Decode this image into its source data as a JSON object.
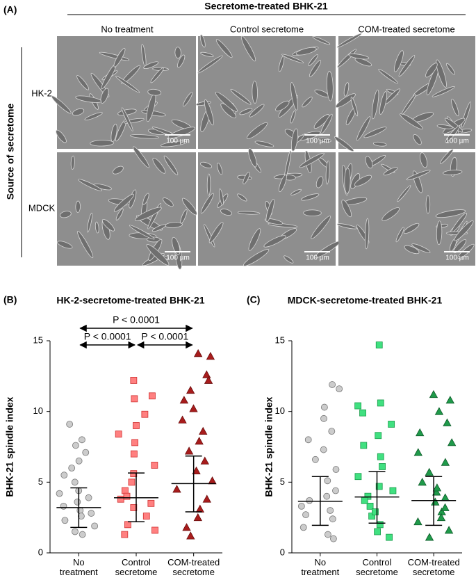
{
  "panel_a": {
    "label": "(A)",
    "title": "Secretome-treated BHK-21",
    "columns": [
      "No treatment",
      "Control secretome",
      "COM-treated secretome"
    ],
    "rows": [
      "HK-2",
      "MDCK"
    ],
    "row_title": "Source of secretome",
    "scale_bar": "100 µm"
  },
  "chart_data": [
    {
      "type": "strip",
      "panel_label": "(B)",
      "title": "HK-2-secretome-treated BHK-21",
      "y_label": "BHK-21 spindle index",
      "categories": [
        "No treatment",
        "Control secretome",
        "COM-treated secretome"
      ],
      "ylim": [
        0,
        15
      ],
      "yticks": [
        0,
        5,
        10,
        15
      ],
      "series": [
        {
          "color": "#cccccc",
          "stroke": "#777777",
          "marker": "circle",
          "mean": 3.2,
          "error_low": 1.8,
          "error_high": 4.6,
          "values": [
            9.1,
            8.0,
            7.6,
            7.1,
            6.5,
            6.0,
            5.5,
            5.0,
            4.4,
            3.9,
            3.3,
            2.8,
            2.3,
            1.9,
            1.5,
            1.3,
            3.0,
            3.6,
            2.6,
            4.2
          ]
        },
        {
          "color": "#ff8080",
          "stroke": "#d03030",
          "marker": "square",
          "mean": 3.9,
          "error_low": 2.2,
          "error_high": 5.65,
          "values": [
            12.2,
            11.1,
            10.9,
            9.8,
            9.0,
            8.4,
            7.8,
            7.0,
            6.2,
            5.6,
            5.0,
            4.4,
            3.8,
            3.2,
            2.6,
            2.0,
            1.6,
            1.3,
            4.0,
            3.5
          ]
        },
        {
          "color": "#a81c1c",
          "stroke": "#6a0e0e",
          "marker": "triangle",
          "mean": 4.9,
          "error_low": 2.9,
          "error_high": 6.85,
          "values": [
            14.1,
            13.9,
            12.6,
            12.2,
            11.5,
            10.8,
            10.2,
            9.4,
            8.6,
            7.9,
            7.2,
            6.5,
            5.8,
            5.1,
            4.5,
            3.8,
            3.1,
            2.5,
            1.8,
            1.2
          ]
        }
      ],
      "annotations": [
        {
          "label": "P < 0.0001",
          "from": 0,
          "to": 2
        },
        {
          "label": "P < 0.0001",
          "from": 0,
          "to": 1
        },
        {
          "label": "P < 0.0001",
          "from": 1,
          "to": 2
        }
      ]
    },
    {
      "type": "strip",
      "panel_label": "(C)",
      "title": "MDCK-secretome-treated BHK-21",
      "y_label": "BHK-21 spindle index",
      "categories": [
        "No treatment",
        "Control secretome",
        "COM-treated secretome"
      ],
      "ylim": [
        0,
        15
      ],
      "yticks": [
        0,
        5,
        10,
        15
      ],
      "series": [
        {
          "color": "#cccccc",
          "stroke": "#777777",
          "marker": "circle",
          "mean": 3.65,
          "error_low": 1.95,
          "error_high": 5.4,
          "values": [
            11.9,
            11.6,
            10.3,
            9.5,
            8.6,
            8.0,
            7.3,
            6.6,
            5.9,
            5.1,
            4.4,
            3.7,
            3.0,
            2.4,
            1.8,
            1.3,
            1.0,
            4.0,
            3.3,
            2.7
          ]
        },
        {
          "color": "#40e080",
          "stroke": "#1a9a4a",
          "marker": "square",
          "mean": 3.95,
          "error_low": 2.1,
          "error_high": 5.75,
          "values": [
            14.7,
            10.6,
            10.4,
            9.9,
            9.1,
            8.3,
            7.6,
            6.8,
            6.1,
            5.4,
            4.7,
            4.0,
            3.3,
            2.6,
            2.0,
            1.5,
            1.1,
            3.7,
            4.4,
            2.9
          ]
        },
        {
          "color": "#1f9a4a",
          "stroke": "#0d5a28",
          "marker": "triangle",
          "mean": 3.7,
          "error_low": 1.95,
          "error_high": 5.4,
          "values": [
            11.2,
            10.8,
            10.0,
            9.2,
            8.5,
            7.8,
            7.1,
            6.4,
            5.7,
            5.0,
            4.3,
            3.6,
            2.9,
            2.2,
            1.6,
            1.1,
            3.9,
            3.2,
            2.5,
            4.6
          ]
        }
      ],
      "annotations": []
    }
  ]
}
